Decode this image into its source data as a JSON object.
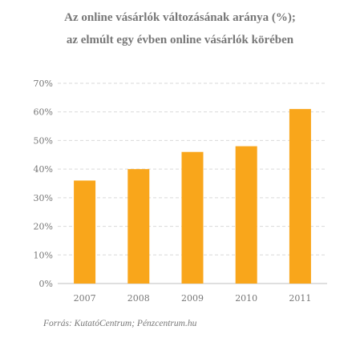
{
  "title_line1": "Az online vásárlók változásának aránya (%);",
  "title_line2": "az elmúlt egy évben online vásárlók körében",
  "source": "Forrás: KutatóCentrum; Pénzcentrum.hu",
  "colors": {
    "bar": "#F9A61B",
    "grid": "#d9d9d9",
    "text": "#777777"
  },
  "chart_data": {
    "type": "bar",
    "categories": [
      "2007",
      "2008",
      "2009",
      "2010",
      "2011"
    ],
    "values": [
      36,
      40,
      46,
      48,
      61
    ],
    "ylim": [
      0,
      70
    ],
    "yticks": [
      "0%",
      "10%",
      "20%",
      "30%",
      "40%",
      "50%",
      "60%",
      "70%"
    ],
    "grid": true,
    "grid_style": "dashed"
  }
}
